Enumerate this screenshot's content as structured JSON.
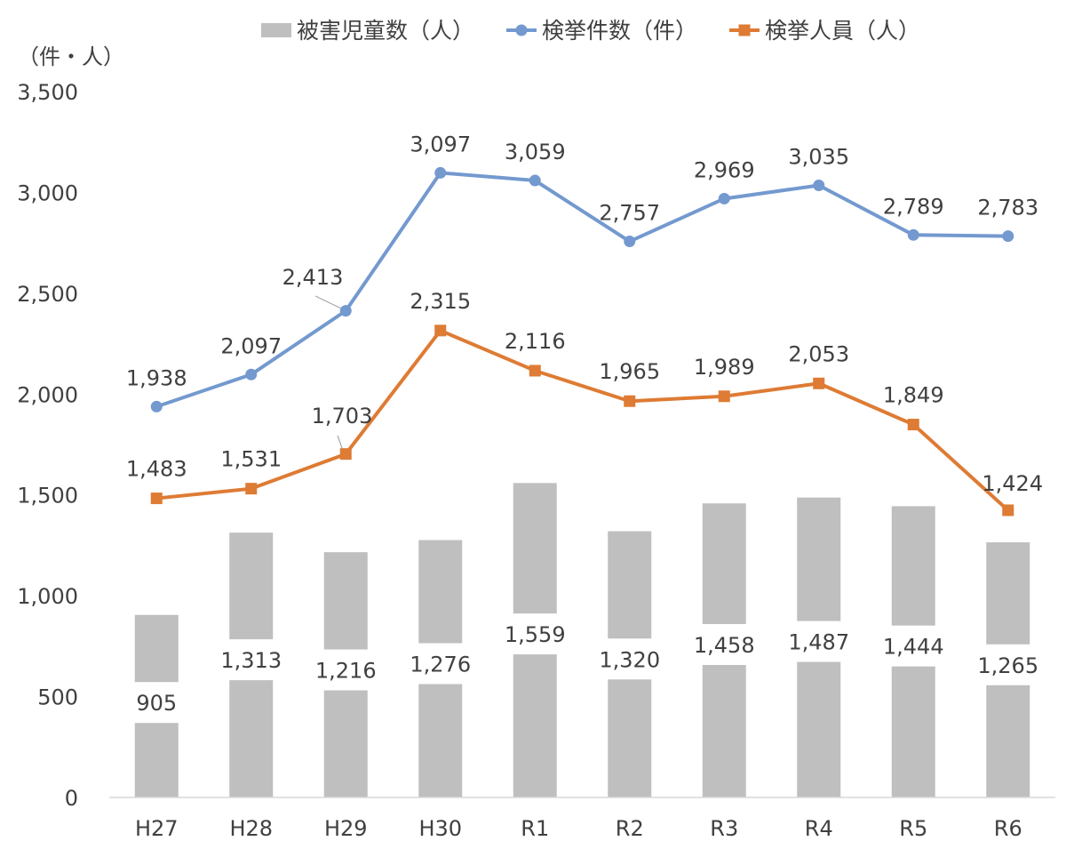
{
  "chart_data": {
    "type": "bar+line",
    "title": "",
    "unit_label": "（件・人）",
    "xlabel": "",
    "ylabel": "",
    "ylim": [
      0,
      3500
    ],
    "yticks": [
      0,
      500,
      1000,
      1500,
      2000,
      2500,
      3000,
      3500
    ],
    "ytick_labels": [
      "0",
      "500",
      "1,000",
      "1,500",
      "2,000",
      "2,500",
      "3,000",
      "3,500"
    ],
    "grid": false,
    "legend_position": "top",
    "categories": [
      "H27",
      "H28",
      "H29",
      "H30",
      "R1",
      "R2",
      "R3",
      "R4",
      "R5",
      "R6"
    ],
    "series": [
      {
        "name": "被害児童数（人）",
        "kind": "bar",
        "color": "#bfbfbf",
        "values": [
          905,
          1313,
          1216,
          1276,
          1559,
          1320,
          1458,
          1487,
          1444,
          1265
        ],
        "labels": [
          "905",
          "1,313",
          "1,216",
          "1,276",
          "1,559",
          "1,320",
          "1,458",
          "1,487",
          "1,444",
          "1,265"
        ]
      },
      {
        "name": "検挙件数（件）",
        "kind": "line",
        "marker": "circle",
        "color": "#7399cf",
        "values": [
          1938,
          2097,
          2413,
          3097,
          3059,
          2757,
          2969,
          3035,
          2789,
          2783
        ],
        "labels": [
          "1,938",
          "2,097",
          "2,413",
          "3,097",
          "3,059",
          "2,757",
          "2,969",
          "3,035",
          "2,789",
          "2,783"
        ]
      },
      {
        "name": "検挙人員（人）",
        "kind": "line",
        "marker": "square",
        "color": "#de7b34",
        "values": [
          1483,
          1531,
          1703,
          2315,
          2116,
          1965,
          1989,
          2053,
          1849,
          1424
        ],
        "labels": [
          "1,483",
          "1,531",
          "1,703",
          "2,315",
          "2,116",
          "1,965",
          "1,989",
          "2,053",
          "1,849",
          "1,424"
        ]
      }
    ]
  }
}
